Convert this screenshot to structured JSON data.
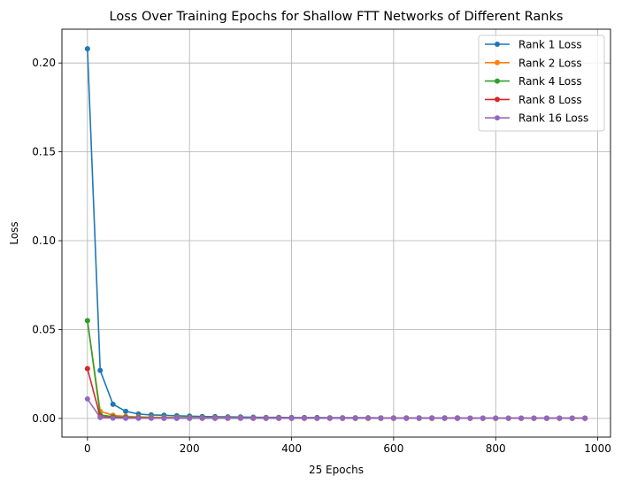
{
  "chart_data": {
    "type": "line",
    "title": "Loss Over Training Epochs for Shallow FTT Networks of Different Ranks",
    "xlabel": "25 Epochs",
    "ylabel": "Loss",
    "xlim": [
      -50,
      1025
    ],
    "ylim": [
      -0.0105,
      0.219
    ],
    "xticks": [
      0,
      200,
      400,
      600,
      800,
      1000
    ],
    "xtick_labels": [
      "0",
      "200",
      "400",
      "600",
      "800",
      "1000"
    ],
    "yticks": [
      0.0,
      0.05,
      0.1,
      0.15,
      0.2
    ],
    "ytick_labels": [
      "0.00",
      "0.05",
      "0.10",
      "0.15",
      "0.20"
    ],
    "grid": true,
    "legend_position": "top-right",
    "x": [
      0,
      25,
      50,
      75,
      100,
      125,
      150,
      175,
      200,
      225,
      250,
      275,
      300,
      325,
      350,
      375,
      400,
      425,
      450,
      475,
      500,
      525,
      550,
      575,
      600,
      625,
      650,
      675,
      700,
      725,
      750,
      775,
      800,
      825,
      850,
      875,
      900,
      925,
      950,
      975
    ],
    "series": [
      {
        "name": "Rank 1 Loss",
        "color": "#1f77b4",
        "values": [
          0.208,
          0.027,
          0.008,
          0.004,
          0.0025,
          0.002,
          0.0018,
          0.0015,
          0.0013,
          0.0011,
          0.001,
          0.0009,
          0.0008,
          0.0007,
          0.0006,
          0.0006,
          0.0005,
          0.0005,
          0.0005,
          0.0004,
          0.0004,
          0.0004,
          0.0004,
          0.0003,
          0.0003,
          0.0003,
          0.0003,
          0.0003,
          0.0003,
          0.0003,
          0.0002,
          0.0002,
          0.0002,
          0.0002,
          0.0002,
          0.0002,
          0.0002,
          0.0002,
          0.0002,
          0.0002
        ]
      },
      {
        "name": "Rank 2 Loss",
        "color": "#ff7f0e",
        "values": [
          0.055,
          0.004,
          0.0018,
          0.0012,
          0.0009,
          0.0007,
          0.0006,
          0.0005,
          0.0005,
          0.0004,
          0.0004,
          0.0004,
          0.0003,
          0.0003,
          0.0003,
          0.0003,
          0.0002,
          0.0002,
          0.0002,
          0.0002,
          0.0002,
          0.0002,
          0.0002,
          0.0002,
          0.0002,
          0.0002,
          0.0001,
          0.0001,
          0.0001,
          0.0001,
          0.0001,
          0.0001,
          0.0001,
          0.0001,
          0.0001,
          0.0001,
          0.0001,
          0.0001,
          0.0001,
          0.0001
        ]
      },
      {
        "name": "Rank 4 Loss",
        "color": "#2ca02c",
        "values": [
          0.055,
          0.002,
          0.001,
          0.0007,
          0.0005,
          0.0004,
          0.0003,
          0.0003,
          0.0003,
          0.0002,
          0.0002,
          0.0002,
          0.0002,
          0.0002,
          0.0001,
          0.0001,
          0.0001,
          0.0001,
          0.0001,
          0.0001,
          0.0001,
          0.0001,
          0.0001,
          0.0001,
          0.0001,
          0.0001,
          0.0001,
          0.0001,
          0.0001,
          0.0001,
          0.0001,
          0.0001,
          0.0001,
          0.0001,
          0.0001,
          0.0001,
          0.0001,
          0.0001,
          0.0001,
          0.0001
        ]
      },
      {
        "name": "Rank 8 Loss",
        "color": "#d62728",
        "values": [
          0.028,
          0.001,
          0.0005,
          0.0003,
          0.0002,
          0.0002,
          0.0001,
          0.0001,
          0.0001,
          0.0001,
          0.0001,
          0.0001,
          0.0001,
          0.0001,
          0.0001,
          0.0001,
          0.0001,
          0.0001,
          0.0001,
          0.0001,
          0.0001,
          0.0001,
          0.0001,
          0.0001,
          0.0001,
          0.0001,
          0.0001,
          0.0001,
          0.0001,
          0.0001,
          0.0001,
          0.0001,
          0.0001,
          0.0001,
          0.0001,
          0.0001,
          0.0001,
          0.0001,
          0.0001,
          0.0001
        ]
      },
      {
        "name": "Rank 16 Loss",
        "color": "#9467bd",
        "values": [
          0.011,
          0.0005,
          0.0002,
          0.0001,
          0.0001,
          0.0001,
          0.0001,
          0.0001,
          0.0001,
          0.0001,
          0.0001,
          0.0001,
          0.0001,
          0.0001,
          0.0001,
          0.0001,
          0.0001,
          0.0001,
          0.0001,
          0.0001,
          0.0001,
          0.0001,
          0.0001,
          0.0001,
          0.0001,
          0.0001,
          0.0001,
          0.0001,
          0.0001,
          0.0001,
          0.0001,
          0.0001,
          0.0001,
          0.0001,
          0.0001,
          0.0001,
          0.0001,
          0.0001,
          0.0001,
          0.0001
        ]
      }
    ]
  }
}
